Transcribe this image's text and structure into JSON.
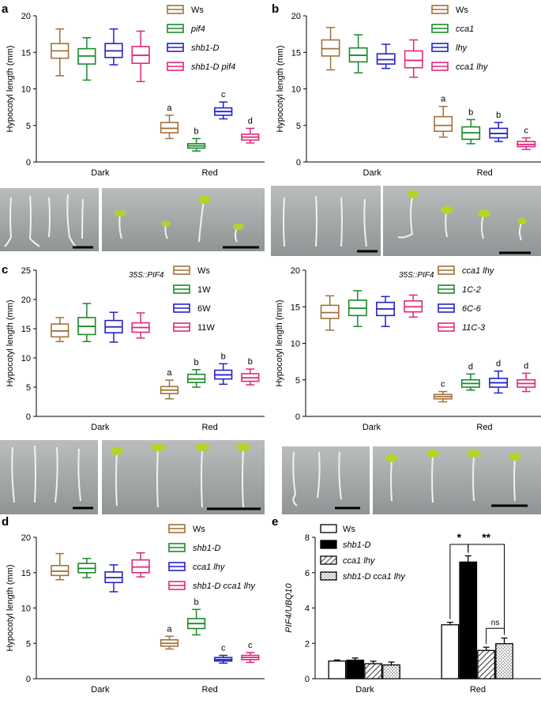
{
  "figure": {
    "panels": [
      {
        "id": "a",
        "label": "a",
        "ylabel": "Hypocotyl length (mm)",
        "header": ""
      },
      {
        "id": "b",
        "label": "b",
        "ylabel": "Hypocotyl length (mm)",
        "header": ""
      },
      {
        "id": "c",
        "label": "c",
        "ylabel": "Hypocotyl length (mm)",
        "header": "35S::PIF4"
      },
      {
        "id": "c2",
        "label": "",
        "ylabel": "Hypocotyl length (mm)",
        "header": "35S::PIF4"
      },
      {
        "id": "d",
        "label": "d",
        "ylabel": "Hypocotyl length (mm)",
        "header": ""
      },
      {
        "id": "e",
        "label": "e",
        "ylabel": "PIF4/UBQ10",
        "header": ""
      }
    ],
    "colors": {
      "Ws": "#a0723a",
      "green": "#1a8a2a",
      "blue": "#2222cc",
      "pink": "#e0287a",
      "bar_black": "#000000",
      "axis": "#000000",
      "photo_bg": "#9ea3a3"
    }
  },
  "chart_data": [
    {
      "panel": "a",
      "type": "box",
      "ylabel": "Hypocotyl length (mm)",
      "ylim": [
        0,
        20
      ],
      "yticks": [
        0,
        5,
        10,
        15,
        20
      ],
      "conditions": [
        "Dark",
        "Red"
      ],
      "series": [
        {
          "name": "Ws",
          "italic": false,
          "color": "#a0723a",
          "dark": {
            "min": 11.8,
            "q1": 14.2,
            "median": 15.2,
            "q3": 16.2,
            "max": 18.2
          },
          "red": {
            "min": 3.2,
            "q1": 4.0,
            "median": 4.6,
            "q3": 5.4,
            "max": 6.4
          },
          "letter": "a"
        },
        {
          "name": "pif4",
          "italic": true,
          "color": "#1a8a2a",
          "dark": {
            "min": 11.2,
            "q1": 13.4,
            "median": 14.5,
            "q3": 15.5,
            "max": 17.0
          },
          "red": {
            "min": 1.5,
            "q1": 1.9,
            "median": 2.2,
            "q3": 2.5,
            "max": 3.2
          },
          "letter": "b"
        },
        {
          "name": "shb1-D",
          "italic": true,
          "color": "#2222cc",
          "dark": {
            "min": 13.3,
            "q1": 14.3,
            "median": 15.2,
            "q3": 16.2,
            "max": 18.2
          },
          "red": {
            "min": 5.9,
            "q1": 6.4,
            "median": 6.9,
            "q3": 7.4,
            "max": 8.2
          },
          "letter": "c"
        },
        {
          "name": "shb1-D pif4",
          "italic": true,
          "color": "#e0287a",
          "dark": {
            "min": 11.0,
            "q1": 13.5,
            "median": 14.6,
            "q3": 15.8,
            "max": 17.9
          },
          "red": {
            "min": 2.6,
            "q1": 3.0,
            "median": 3.4,
            "q3": 3.8,
            "max": 4.6
          },
          "letter": "d"
        }
      ]
    },
    {
      "panel": "b",
      "type": "box",
      "ylabel": "Hypocotyl length (mm)",
      "ylim": [
        0,
        20
      ],
      "yticks": [
        0,
        5,
        10,
        15,
        20
      ],
      "conditions": [
        "Dark",
        "Red"
      ],
      "series": [
        {
          "name": "Ws",
          "italic": false,
          "color": "#a0723a",
          "dark": {
            "min": 12.6,
            "q1": 14.5,
            "median": 15.5,
            "q3": 16.7,
            "max": 18.4
          },
          "red": {
            "min": 3.4,
            "q1": 4.2,
            "median": 5.0,
            "q3": 6.2,
            "max": 7.6
          },
          "letter": "a"
        },
        {
          "name": "cca1",
          "italic": true,
          "color": "#1a8a2a",
          "dark": {
            "min": 12.2,
            "q1": 13.7,
            "median": 14.6,
            "q3": 15.6,
            "max": 17.4
          },
          "red": {
            "min": 2.5,
            "q1": 3.1,
            "median": 4.0,
            "q3": 4.8,
            "max": 5.8
          },
          "letter": "b"
        },
        {
          "name": "lhy",
          "italic": true,
          "color": "#2222cc",
          "dark": {
            "min": 12.8,
            "q1": 13.4,
            "median": 14.0,
            "q3": 14.8,
            "max": 16.1
          },
          "red": {
            "min": 2.8,
            "q1": 3.3,
            "median": 3.9,
            "q3": 4.6,
            "max": 5.4
          },
          "letter": "b"
        },
        {
          "name": "cca1 lhy",
          "italic": true,
          "color": "#e0287a",
          "dark": {
            "min": 11.6,
            "q1": 12.9,
            "median": 13.9,
            "q3": 15.2,
            "max": 16.7
          },
          "red": {
            "min": 1.7,
            "q1": 2.1,
            "median": 2.4,
            "q3": 2.8,
            "max": 3.3
          },
          "letter": "c"
        }
      ]
    },
    {
      "panel": "c",
      "type": "box",
      "ylabel": "Hypocotyl length (mm)",
      "ylim": [
        0,
        25
      ],
      "yticks": [
        0,
        5,
        10,
        15,
        20,
        25
      ],
      "conditions": [
        "Dark",
        "Red"
      ],
      "series": [
        {
          "name": "Ws",
          "italic": false,
          "color": "#a0723a",
          "dark": {
            "min": 12.8,
            "q1": 13.6,
            "median": 14.6,
            "q3": 15.8,
            "max": 16.9
          },
          "red": {
            "min": 3.0,
            "q1": 3.9,
            "median": 4.5,
            "q3": 5.1,
            "max": 6.2
          },
          "letter": "a"
        },
        {
          "name": "1W",
          "italic": false,
          "color": "#1a8a2a",
          "dark": {
            "min": 12.8,
            "q1": 14.0,
            "median": 15.4,
            "q3": 16.9,
            "max": 19.3
          },
          "red": {
            "min": 5.0,
            "q1": 5.8,
            "median": 6.4,
            "q3": 7.2,
            "max": 8.0
          },
          "letter": "b"
        },
        {
          "name": "6W",
          "italic": false,
          "color": "#2222cc",
          "dark": {
            "min": 12.7,
            "q1": 14.3,
            "median": 15.3,
            "q3": 16.4,
            "max": 17.8
          },
          "red": {
            "min": 5.5,
            "q1": 6.4,
            "median": 7.1,
            "q3": 7.9,
            "max": 9.0
          },
          "letter": "b"
        },
        {
          "name": "11W",
          "italic": false,
          "color": "#e0287a",
          "dark": {
            "min": 13.4,
            "q1": 14.4,
            "median": 15.2,
            "q3": 16.0,
            "max": 17.7
          },
          "red": {
            "min": 5.4,
            "q1": 6.0,
            "median": 6.6,
            "q3": 7.3,
            "max": 8.1
          },
          "letter": "b"
        }
      ]
    },
    {
      "panel": "c2",
      "type": "box",
      "ylabel": "Hypocotyl length (mm)",
      "ylim": [
        0,
        20
      ],
      "yticks": [
        0,
        5,
        10,
        15,
        20
      ],
      "conditions": [
        "Dark",
        "Red"
      ],
      "series": [
        {
          "name": "cca1 lhy",
          "italic": true,
          "color": "#a0723a",
          "dark": {
            "min": 11.8,
            "q1": 13.4,
            "median": 14.2,
            "q3": 15.2,
            "max": 16.5
          },
          "red": {
            "min": 2.0,
            "q1": 2.4,
            "median": 2.7,
            "q3": 3.0,
            "max": 3.4
          },
          "letter": "c"
        },
        {
          "name": "1C-2",
          "italic": true,
          "color": "#1a8a2a",
          "dark": {
            "min": 12.3,
            "q1": 13.8,
            "median": 14.8,
            "q3": 15.9,
            "max": 17.2
          },
          "red": {
            "min": 3.6,
            "q1": 4.0,
            "median": 4.5,
            "q3": 5.0,
            "max": 5.8
          },
          "letter": "d"
        },
        {
          "name": "6C-6",
          "italic": true,
          "color": "#2222cc",
          "dark": {
            "min": 12.3,
            "q1": 13.8,
            "median": 14.7,
            "q3": 15.6,
            "max": 16.4
          },
          "red": {
            "min": 3.2,
            "q1": 4.0,
            "median": 4.6,
            "q3": 5.2,
            "max": 6.2
          },
          "letter": "d"
        },
        {
          "name": "11C-3",
          "italic": true,
          "color": "#e0287a",
          "dark": {
            "min": 13.6,
            "q1": 14.3,
            "median": 15.0,
            "q3": 15.8,
            "max": 16.6
          },
          "red": {
            "min": 3.4,
            "q1": 4.0,
            "median": 4.5,
            "q3": 5.0,
            "max": 5.9
          },
          "letter": "d"
        }
      ]
    },
    {
      "panel": "d",
      "type": "box",
      "ylabel": "Hypocotyl length (mm)",
      "ylim": [
        0,
        20
      ],
      "yticks": [
        0,
        5,
        10,
        15,
        20
      ],
      "conditions": [
        "Dark",
        "Red"
      ],
      "series": [
        {
          "name": "Ws",
          "italic": false,
          "color": "#a0723a",
          "dark": {
            "min": 14.0,
            "q1": 14.6,
            "median": 15.2,
            "q3": 16.0,
            "max": 17.7
          },
          "red": {
            "min": 4.2,
            "q1": 4.6,
            "median": 5.0,
            "q3": 5.5,
            "max": 6.0
          },
          "letter": "a"
        },
        {
          "name": "shb1-D",
          "italic": true,
          "color": "#1a8a2a",
          "dark": {
            "min": 14.3,
            "q1": 15.0,
            "median": 15.6,
            "q3": 16.3,
            "max": 17.0
          },
          "red": {
            "min": 6.2,
            "q1": 7.1,
            "median": 7.8,
            "q3": 8.5,
            "max": 9.8
          },
          "letter": "b"
        },
        {
          "name": "cca1 lhy",
          "italic": true,
          "color": "#2222cc",
          "dark": {
            "min": 12.3,
            "q1": 13.6,
            "median": 14.3,
            "q3": 15.1,
            "max": 16.1
          },
          "red": {
            "min": 2.2,
            "q1": 2.5,
            "median": 2.7,
            "q3": 3.0,
            "max": 3.3
          },
          "letter": "c"
        },
        {
          "name": "shb1-D cca1 lhy",
          "italic": true,
          "color": "#e0287a",
          "dark": {
            "min": 14.4,
            "q1": 15.0,
            "median": 15.8,
            "q3": 16.8,
            "max": 17.8
          },
          "red": {
            "min": 2.3,
            "q1": 2.7,
            "median": 3.0,
            "q3": 3.3,
            "max": 3.7
          },
          "letter": "c"
        }
      ]
    },
    {
      "panel": "e",
      "type": "bar",
      "ylabel": "PIF4/UBQ10",
      "ylim": [
        0,
        8
      ],
      "yticks": [
        0,
        2,
        4,
        6,
        8
      ],
      "categories": [
        "Dark",
        "Red"
      ],
      "series": [
        {
          "name": "Ws",
          "italic": false,
          "fill": "white",
          "values": [
            1.0,
            3.05
          ],
          "errors": [
            0.06,
            0.14
          ]
        },
        {
          "name": "shb1-D",
          "italic": true,
          "fill": "black",
          "values": [
            1.05,
            6.6
          ],
          "errors": [
            0.12,
            0.35
          ]
        },
        {
          "name": "cca1 lhy",
          "italic": true,
          "fill": "hatch",
          "values": [
            0.85,
            1.6
          ],
          "errors": [
            0.14,
            0.18
          ]
        },
        {
          "name": "shb1-D cca1 lhy",
          "italic": true,
          "fill": "dots",
          "values": [
            0.78,
            1.98
          ],
          "errors": [
            0.16,
            0.32
          ]
        }
      ],
      "significance": [
        {
          "from": 0,
          "to": 1,
          "label": "*"
        },
        {
          "from": 1,
          "to": 3,
          "label": "**"
        },
        {
          "from": 2,
          "to": 3,
          "label": "ns"
        }
      ]
    }
  ]
}
